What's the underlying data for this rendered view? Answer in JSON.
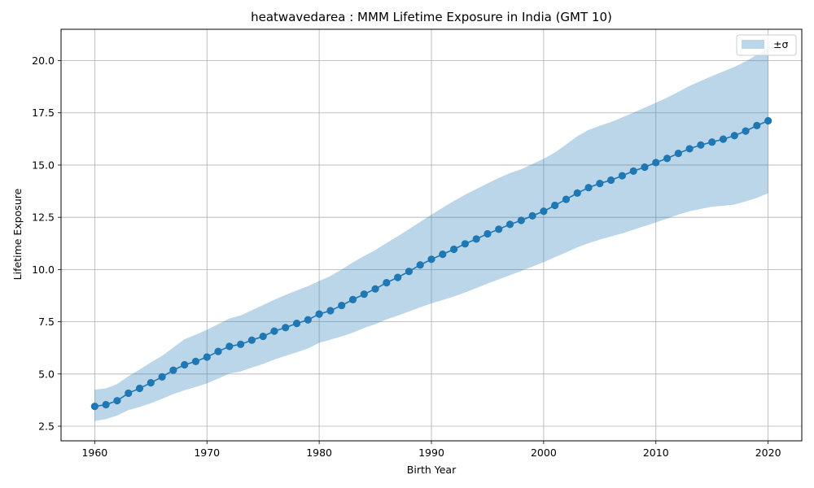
{
  "chart_data": {
    "type": "line",
    "title": "heatwavedarea : MMM Lifetime Exposure in India (GMT 10)",
    "xlabel": "Birth Year",
    "ylabel": "Lifetime Exposure",
    "xlim": [
      1957,
      2023
    ],
    "ylim": [
      1.8,
      21.5
    ],
    "xticks": [
      1960,
      1970,
      1980,
      1990,
      2000,
      2010,
      2020
    ],
    "yticks": [
      2.5,
      5.0,
      7.5,
      10.0,
      12.5,
      15.0,
      17.5,
      20.0
    ],
    "xtick_labels": [
      "1960",
      "1970",
      "1980",
      "1990",
      "2000",
      "2010",
      "2020"
    ],
    "ytick_labels": [
      "2.5",
      "5.0",
      "7.5",
      "10.0",
      "12.5",
      "15.0",
      "17.5",
      "20.0"
    ],
    "grid": true,
    "legend_position": "upper right",
    "legend": [
      {
        "label": "±σ",
        "kind": "band"
      }
    ],
    "colors": {
      "line": "#1f77b4",
      "band": "#1f77b4",
      "band_opacity": 0.3,
      "grid": "#b0b0b0"
    },
    "x": [
      1960,
      1961,
      1962,
      1963,
      1964,
      1965,
      1966,
      1967,
      1968,
      1969,
      1970,
      1971,
      1972,
      1973,
      1974,
      1975,
      1976,
      1977,
      1978,
      1979,
      1980,
      1981,
      1982,
      1983,
      1984,
      1985,
      1986,
      1987,
      1988,
      1989,
      1990,
      1991,
      1992,
      1993,
      1994,
      1995,
      1996,
      1997,
      1998,
      1999,
      2000,
      2001,
      2002,
      2003,
      2004,
      2005,
      2006,
      2007,
      2008,
      2009,
      2010,
      2011,
      2012,
      2013,
      2014,
      2015,
      2016,
      2017,
      2018,
      2019,
      2020
    ],
    "series": [
      {
        "name": "mean",
        "values": [
          3.45,
          3.53,
          3.72,
          4.08,
          4.31,
          4.58,
          4.86,
          5.18,
          5.44,
          5.6,
          5.81,
          6.08,
          6.32,
          6.42,
          6.62,
          6.8,
          7.05,
          7.22,
          7.42,
          7.59,
          7.87,
          8.03,
          8.28,
          8.56,
          8.82,
          9.07,
          9.37,
          9.62,
          9.91,
          10.22,
          10.49,
          10.73,
          10.97,
          11.23,
          11.46,
          11.71,
          11.93,
          12.16,
          12.35,
          12.57,
          12.79,
          13.07,
          13.36,
          13.66,
          13.92,
          14.12,
          14.28,
          14.49,
          14.71,
          14.9,
          15.12,
          15.32,
          15.56,
          15.78,
          15.96,
          16.1,
          16.24,
          16.41,
          16.63,
          16.89,
          17.12
        ]
      }
    ],
    "band": {
      "name": "±σ",
      "upper": [
        4.25,
        4.31,
        4.52,
        4.89,
        5.21,
        5.55,
        5.87,
        6.27,
        6.66,
        6.88,
        7.12,
        7.38,
        7.66,
        7.8,
        8.05,
        8.3,
        8.55,
        8.79,
        9.0,
        9.2,
        9.45,
        9.69,
        10.0,
        10.34,
        10.65,
        10.93,
        11.27,
        11.59,
        11.93,
        12.28,
        12.63,
        12.96,
        13.28,
        13.58,
        13.85,
        14.12,
        14.38,
        14.62,
        14.8,
        15.05,
        15.3,
        15.6,
        15.98,
        16.38,
        16.68,
        16.88,
        17.06,
        17.28,
        17.51,
        17.75,
        17.98,
        18.23,
        18.5,
        18.79,
        19.03,
        19.26,
        19.48,
        19.7,
        19.96,
        20.28,
        20.58
      ],
      "lower": [
        2.75,
        2.84,
        3.01,
        3.27,
        3.42,
        3.6,
        3.81,
        4.04,
        4.22,
        4.38,
        4.55,
        4.78,
        5.02,
        5.12,
        5.31,
        5.48,
        5.69,
        5.87,
        6.04,
        6.22,
        6.49,
        6.64,
        6.8,
        6.98,
        7.2,
        7.38,
        7.61,
        7.79,
        7.99,
        8.19,
        8.38,
        8.54,
        8.71,
        8.9,
        9.11,
        9.33,
        9.53,
        9.73,
        9.93,
        10.14,
        10.35,
        10.59,
        10.82,
        11.06,
        11.26,
        11.43,
        11.58,
        11.73,
        11.91,
        12.08,
        12.26,
        12.44,
        12.63,
        12.79,
        12.9,
        13.01,
        13.05,
        13.11,
        13.26,
        13.43,
        13.65
      ]
    }
  }
}
